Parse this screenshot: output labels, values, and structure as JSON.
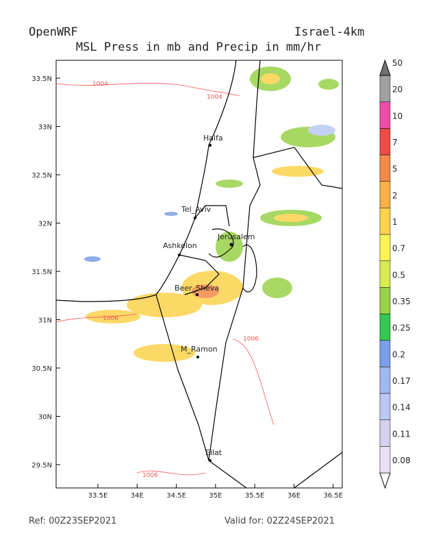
{
  "header": {
    "left": "OpenWRF",
    "right": "Israel-4km",
    "title": "MSL Press in mb and Precip in mm/hr"
  },
  "axes": {
    "lon": [
      "33.5E",
      "34E",
      "34.5E",
      "35E",
      "35.5E",
      "36E",
      "36.5E"
    ],
    "lat": [
      "33.5N",
      "33N",
      "32.5N",
      "32N",
      "31.5N",
      "31N",
      "30.5N",
      "30N",
      "29.5N"
    ]
  },
  "cities": [
    "Haifa",
    "Tel_Aviv",
    "Jerusalem",
    "Ashkelon",
    "Beer_Sheva",
    "M_Ramon",
    "Eilat"
  ],
  "contours": [
    "1004",
    "1004",
    "1006",
    "1006",
    "1006"
  ],
  "colorbar": {
    "levels": [
      0.08,
      0.11,
      0.14,
      0.17,
      0.2,
      0.25,
      0.35,
      0.5,
      0.7,
      1,
      2,
      5,
      7,
      10,
      20,
      50
    ],
    "colors": [
      "#ffffff",
      "#e8e0f4",
      "#d6d0f0",
      "#bcc8f4",
      "#a0b8f0",
      "#7c9ee8",
      "#34c850",
      "#9ad24a",
      "#d8ec50",
      "#fcf450",
      "#fcd24c",
      "#f8b04a",
      "#f48a48",
      "#f04a48",
      "#f04ca8",
      "#a0a0a0",
      "#707070"
    ]
  },
  "footer": {
    "ref": "Ref: 00Z23SEP2021",
    "valid": "Valid for: 02Z24SEP2021"
  }
}
